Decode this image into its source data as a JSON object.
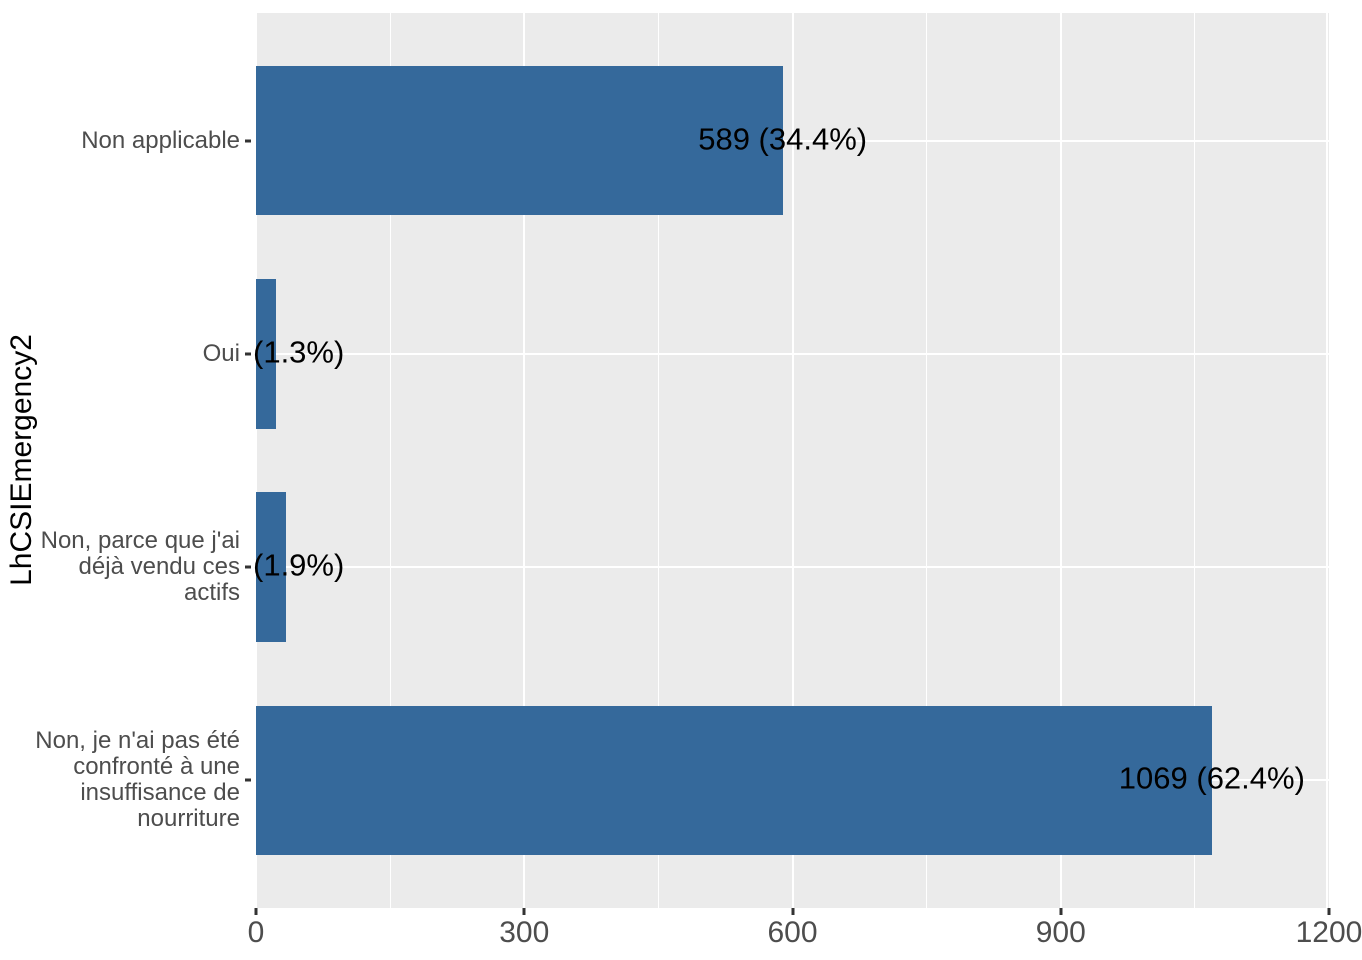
{
  "chart_data": {
    "type": "bar",
    "orientation": "horizontal",
    "title": "",
    "xlabel": "",
    "ylabel": "LhCSIEmergency2",
    "categories_top_to_bottom": [
      "Non applicable",
      "Oui",
      "Non, parce que j'ai\ndéjà vendu ces\nactifs",
      "Non, je n'ai pas été\nconfronté à une\ninsuffisance de\nnourriture"
    ],
    "values": [
      589,
      22,
      33,
      1069
    ],
    "percentages": [
      34.4,
      1.3,
      1.9,
      62.4
    ],
    "bar_labels": [
      "589 (34.4%)",
      "(1.3%)",
      "(1.9%)",
      "1069 (62.4%)"
    ],
    "bar_label_anchor": [
      "center",
      "panel-left",
      "panel-left",
      "center"
    ],
    "xlim": [
      0,
      1200
    ],
    "x_major_ticks": [
      0,
      300,
      600,
      900,
      1200
    ],
    "x_minor_ticks": [
      150,
      450,
      750,
      1050
    ],
    "grid": true,
    "legend": "none",
    "colors": {
      "bar": "#35699B",
      "panel_bg": "#EBEBEB",
      "gridline": "#FFFFFF",
      "axis_text": "#4D4D4D",
      "tick_mark": "#333333",
      "bar_label_text": "#000000",
      "axis_title_text": "#000000"
    }
  }
}
